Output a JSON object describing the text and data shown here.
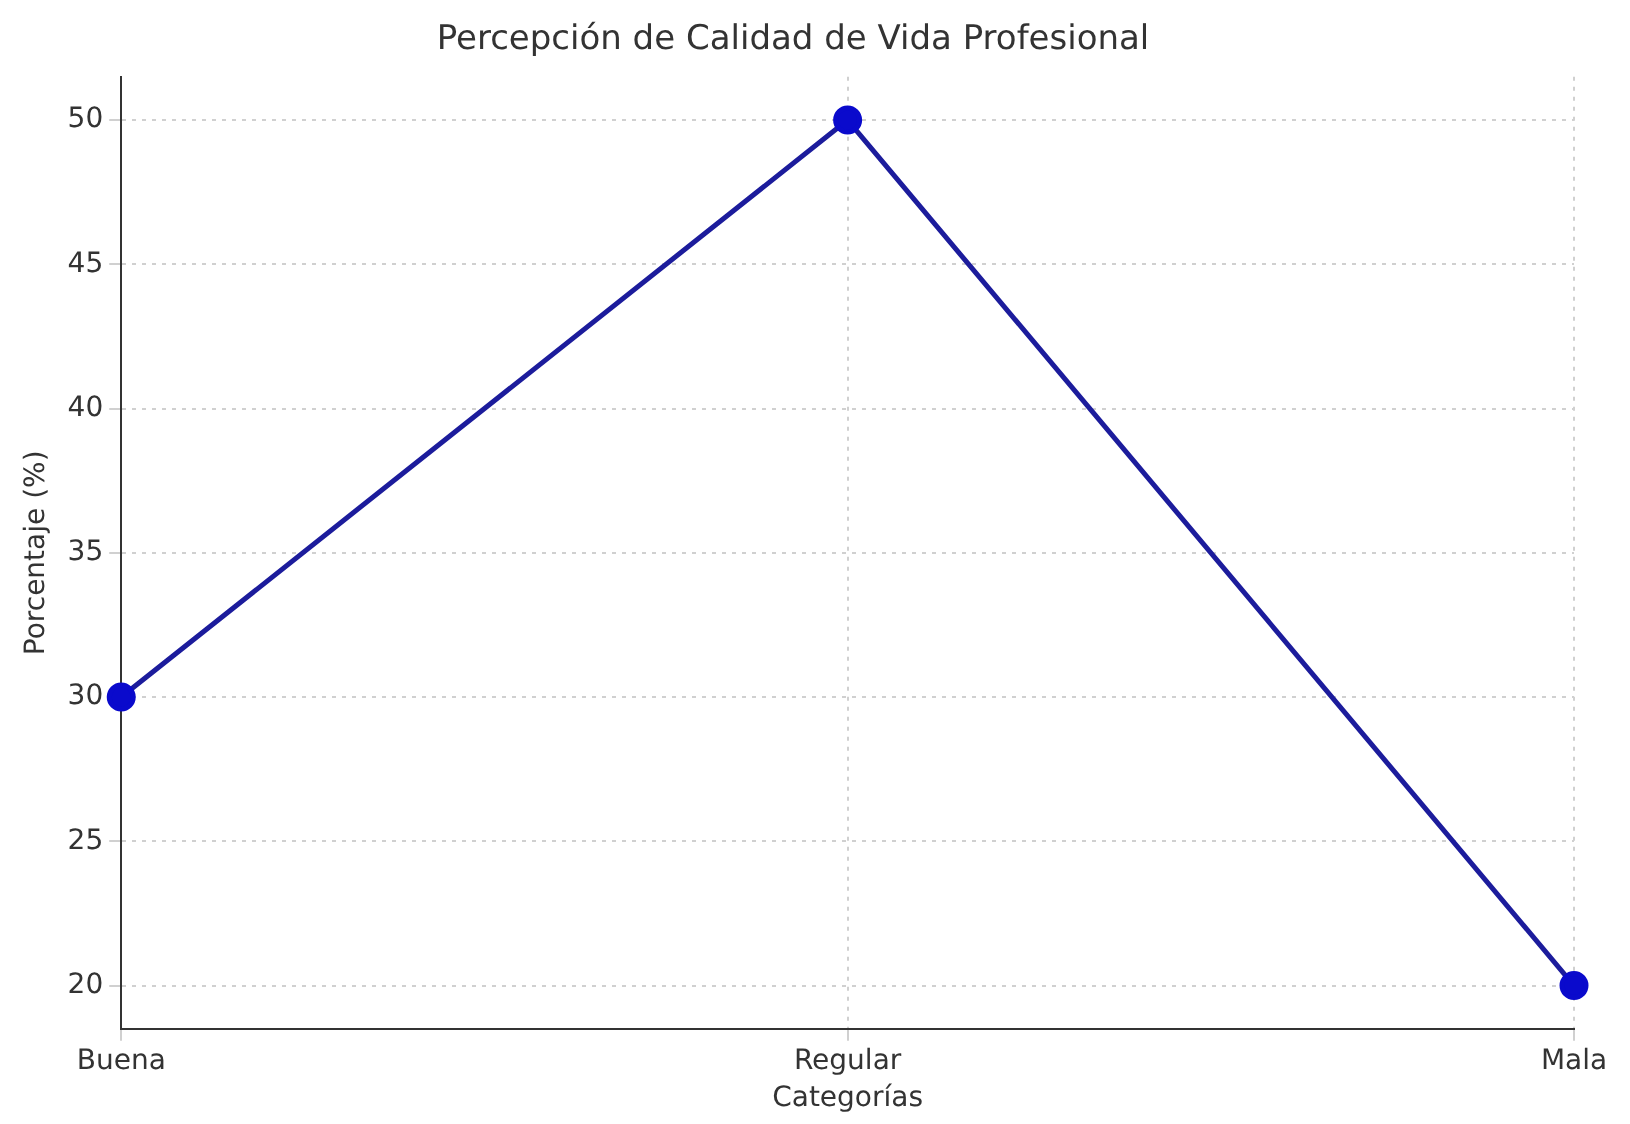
{
  "chart_data": {
    "type": "line",
    "title": "Percepción de Calidad de Vida Profesional",
    "xlabel": "Categorías",
    "ylabel": "Porcentaje (%)",
    "categories": [
      "Buena",
      "Regular",
      "Mala"
    ],
    "series": [
      {
        "color": "#1c1c9c",
        "values": [
          30,
          50,
          20
        ]
      }
    ],
    "ylim": [
      18.5,
      51.5
    ],
    "yticks": [
      20,
      25,
      30,
      35,
      40,
      45,
      50
    ],
    "grid": true,
    "legend": false,
    "marker": "circle",
    "line_style": "solid"
  }
}
